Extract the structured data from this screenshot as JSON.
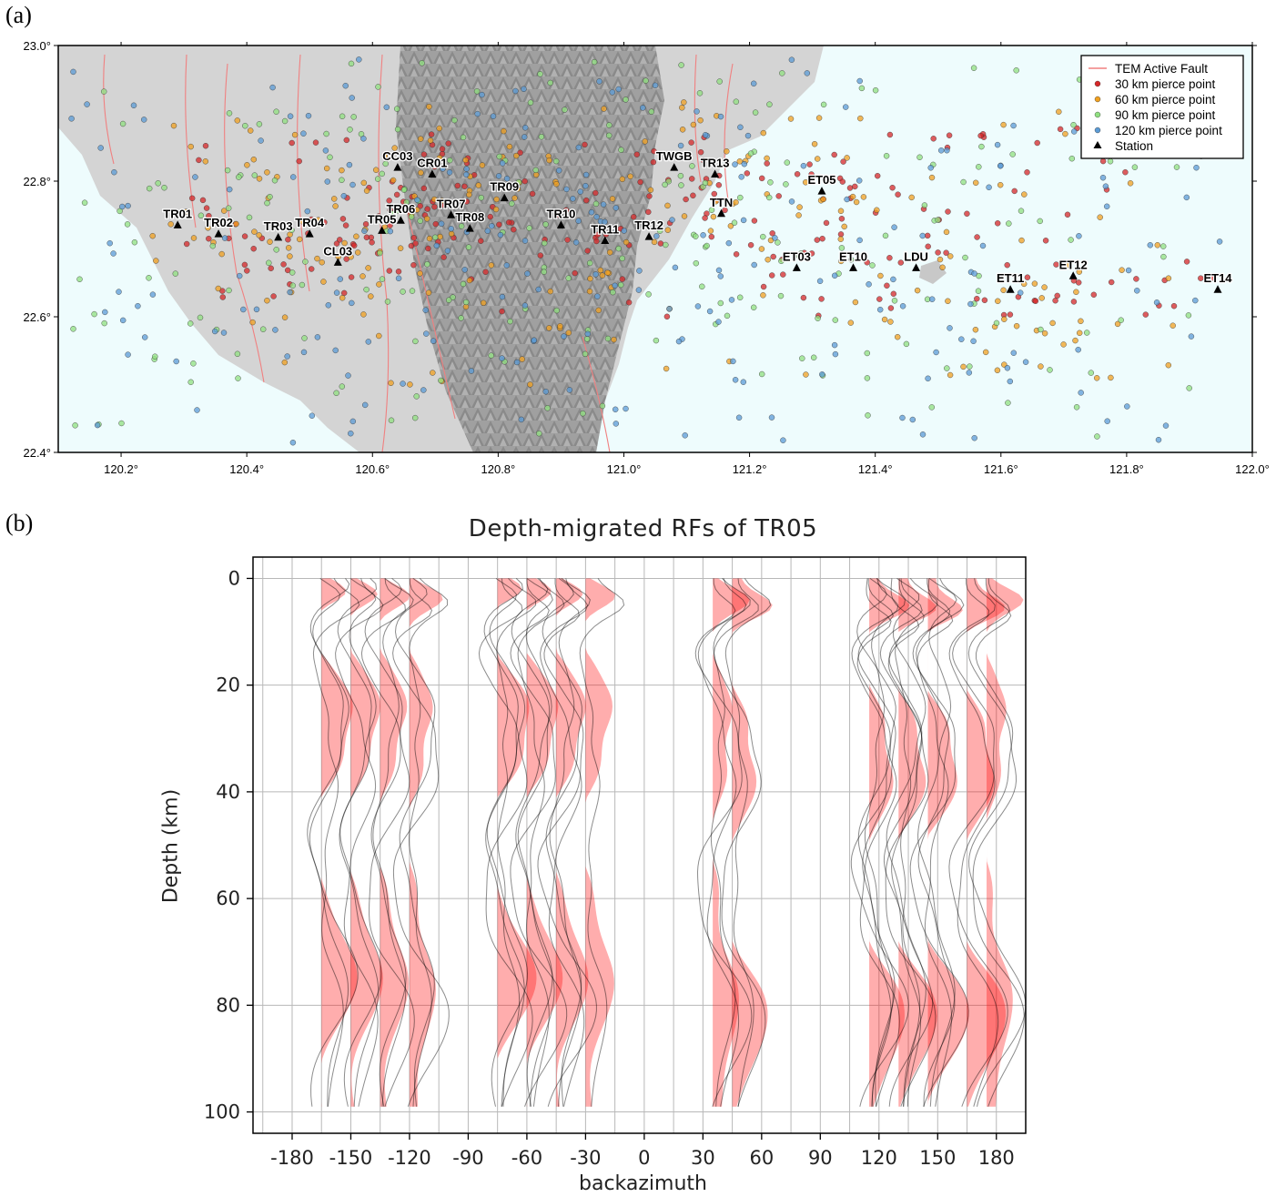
{
  "panel_a_label": "(a)",
  "panel_b_label": "(b)",
  "chart_data": [
    {
      "type": "scatter",
      "lon_ticks": [
        "120.2°",
        "120.4°",
        "120.6°",
        "120.8°",
        "121.0°",
        "121.2°",
        "121.4°",
        "121.6°",
        "121.8°",
        "122.0°"
      ],
      "lat_ticks": [
        "23.0°",
        "22.8°",
        "22.6°",
        "22.4°"
      ],
      "xlim": [
        120.1,
        122.0
      ],
      "ylim": [
        22.4,
        23.0
      ],
      "legend": {
        "placement": "top-right",
        "items": [
          {
            "label": "TEM Active Fault",
            "symbol": "line",
            "color": "#f08080"
          },
          {
            "label": "30 km pierce point",
            "symbol": "circle",
            "color": "#d62728"
          },
          {
            "label": "60 km pierce point",
            "symbol": "circle",
            "color": "#f0a020"
          },
          {
            "label": "90 km pierce point",
            "symbol": "circle",
            "color": "#90e080"
          },
          {
            "label": "120 km pierce point",
            "symbol": "circle",
            "color": "#5b9bd5"
          },
          {
            "label": "Station",
            "symbol": "triangle",
            "color": "#000000"
          }
        ]
      },
      "stations": [
        {
          "name": "TR01",
          "lon": 120.29,
          "lat": 22.735
        },
        {
          "name": "TR02",
          "lon": 120.355,
          "lat": 22.722
        },
        {
          "name": "TR03",
          "lon": 120.45,
          "lat": 22.717
        },
        {
          "name": "TR04",
          "lon": 120.5,
          "lat": 22.722
        },
        {
          "name": "TR05",
          "lon": 120.615,
          "lat": 22.727
        },
        {
          "name": "TR06",
          "lon": 120.645,
          "lat": 22.742
        },
        {
          "name": "CL03",
          "lon": 120.545,
          "lat": 22.68
        },
        {
          "name": "CC03",
          "lon": 120.64,
          "lat": 22.82
        },
        {
          "name": "CR01",
          "lon": 120.695,
          "lat": 22.81
        },
        {
          "name": "TR07",
          "lon": 120.725,
          "lat": 22.75
        },
        {
          "name": "TR08",
          "lon": 120.755,
          "lat": 22.73
        },
        {
          "name": "TR09",
          "lon": 120.81,
          "lat": 22.775
        },
        {
          "name": "TR10",
          "lon": 120.9,
          "lat": 22.735
        },
        {
          "name": "TR11",
          "lon": 120.97,
          "lat": 22.712
        },
        {
          "name": "TR12",
          "lon": 121.04,
          "lat": 22.718
        },
        {
          "name": "TWGB",
          "lon": 121.08,
          "lat": 22.82
        },
        {
          "name": "TR13",
          "lon": 121.145,
          "lat": 22.81
        },
        {
          "name": "TTN",
          "lon": 121.155,
          "lat": 22.752
        },
        {
          "name": "ET05",
          "lon": 121.315,
          "lat": 22.785
        },
        {
          "name": "ET03",
          "lon": 121.275,
          "lat": 22.672
        },
        {
          "name": "ET10",
          "lon": 121.365,
          "lat": 22.672
        },
        {
          "name": "LDU",
          "lon": 121.465,
          "lat": 22.672
        },
        {
          "name": "ET11",
          "lon": 121.615,
          "lat": 22.64
        },
        {
          "name": "ET12",
          "lon": 121.715,
          "lat": 22.66
        },
        {
          "name": "ET14",
          "lon": 121.945,
          "lat": 22.64
        }
      ],
      "pierce_point_series": [
        {
          "name": "30 km pierce point",
          "color": "#d62728",
          "lon_range": [
            120.3,
            121.95
          ],
          "lat_range": [
            22.6,
            22.88
          ]
        },
        {
          "name": "60 km pierce point",
          "color": "#f0a020",
          "lon_range": [
            120.25,
            121.9
          ],
          "lat_range": [
            22.5,
            22.92
          ]
        },
        {
          "name": "90 km pierce point",
          "color": "#90e080",
          "lon_range": [
            120.12,
            121.9
          ],
          "lat_range": [
            22.42,
            22.98
          ]
        },
        {
          "name": "120 km pierce point",
          "color": "#5b9bd5",
          "lon_range": [
            120.12,
            121.95
          ],
          "lat_range": [
            22.41,
            22.98
          ]
        }
      ]
    },
    {
      "type": "line",
      "title": "Depth-migrated RFs of TR05",
      "xlabel": "backazimuth",
      "ylabel": "Depth (km)",
      "xlim": [
        -200,
        195
      ],
      "ylim": [
        104,
        -4
      ],
      "x_ticks": [
        "-180",
        "-150",
        "-120",
        "-90",
        "-60",
        "-30",
        "0",
        "30",
        "60",
        "90",
        "120",
        "150",
        "180"
      ],
      "y_ticks": [
        "0",
        "20",
        "40",
        "60",
        "80",
        "100"
      ],
      "grid": true,
      "fill_color": "#ff0000",
      "trace_color": "#000000",
      "trace_groups": [
        {
          "center_baz": -135,
          "bins": [
            -165,
            -150,
            -135,
            -120
          ],
          "count": 12,
          "depth_max": 99
        },
        {
          "center_baz": -57,
          "bins": [
            -75,
            -60,
            -45
          ],
          "count": 12,
          "depth_max": 99
        },
        {
          "center_baz": -30,
          "bins": [
            -30
          ],
          "count": 1,
          "depth_max": 99
        },
        {
          "center_baz": 38,
          "bins": [
            35,
            45
          ],
          "count": 5,
          "depth_max": 99
        },
        {
          "center_baz": 128,
          "bins": [
            115,
            130,
            145
          ],
          "count": 14,
          "depth_max": 99
        },
        {
          "center_baz": 168,
          "bins": [
            165,
            175
          ],
          "count": 4,
          "depth_max": 99
        }
      ],
      "arrivals_km": [
        4,
        25,
        36,
        75,
        83
      ]
    }
  ]
}
